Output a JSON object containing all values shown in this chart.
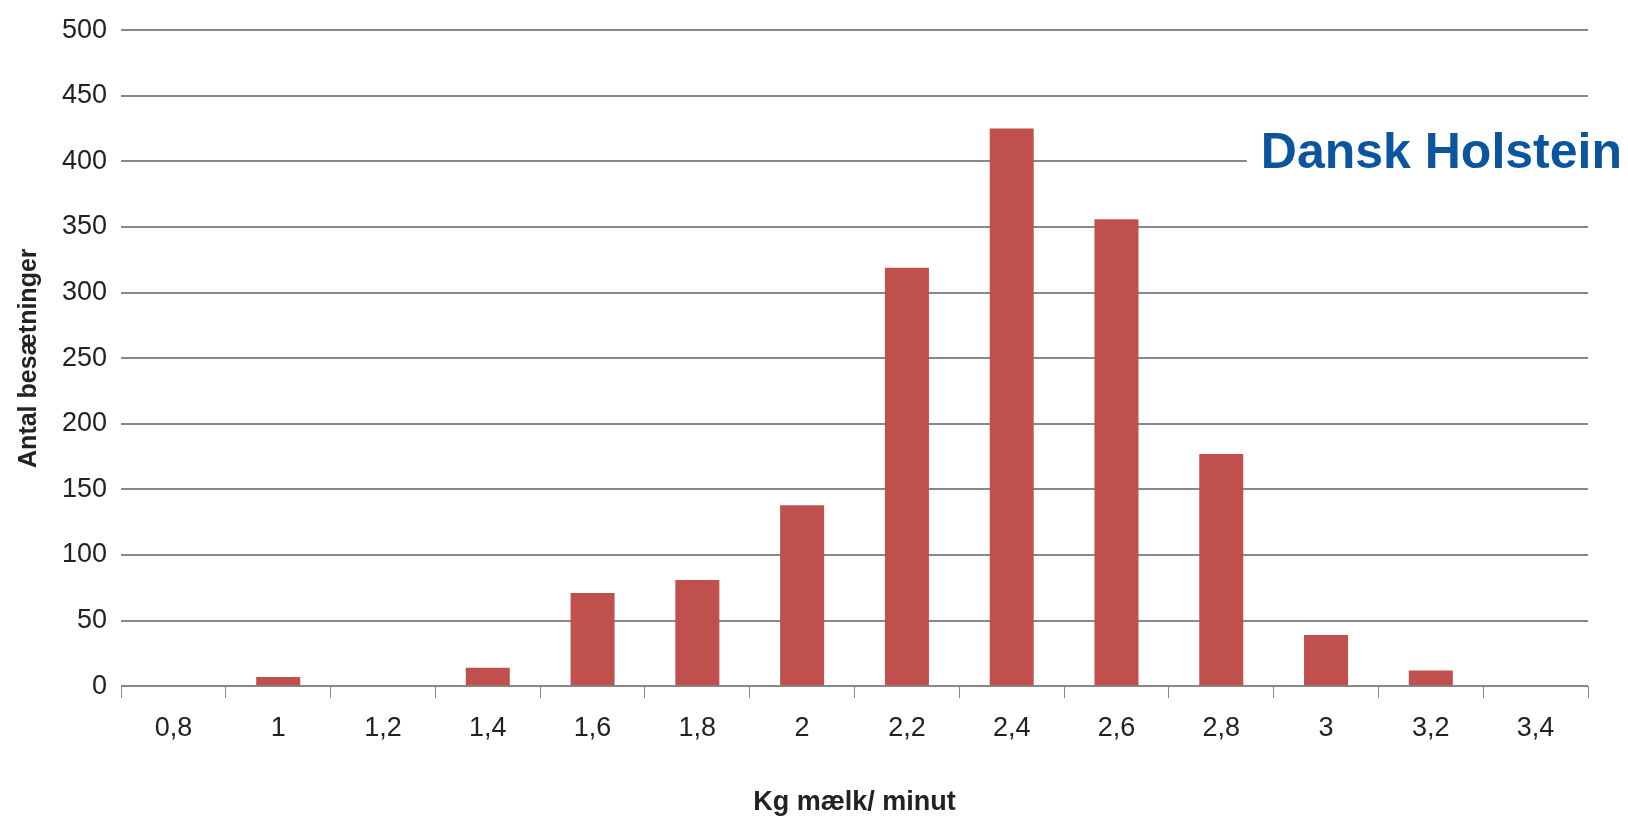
{
  "chart_data": {
    "type": "bar",
    "xlabel": "Kg mælk/ minut",
    "ylabel": "Antal besætninger",
    "categories": [
      "0,8",
      "1",
      "1,2",
      "1,4",
      "1,6",
      "1,8",
      "2",
      "2,2",
      "2,4",
      "2,6",
      "2,8",
      "3",
      "3,2",
      "3,4"
    ],
    "values": [
      0,
      7,
      0,
      14,
      71,
      81,
      138,
      319,
      425,
      356,
      177,
      39,
      12,
      0
    ],
    "color": "#c0504d",
    "ylim": [
      0,
      500
    ],
    "yticks": [
      0,
      50,
      100,
      150,
      200,
      250,
      300,
      350,
      400,
      450,
      500
    ],
    "grid": "y",
    "legend": false,
    "annotations": [
      "Dansk Holstein"
    ]
  }
}
